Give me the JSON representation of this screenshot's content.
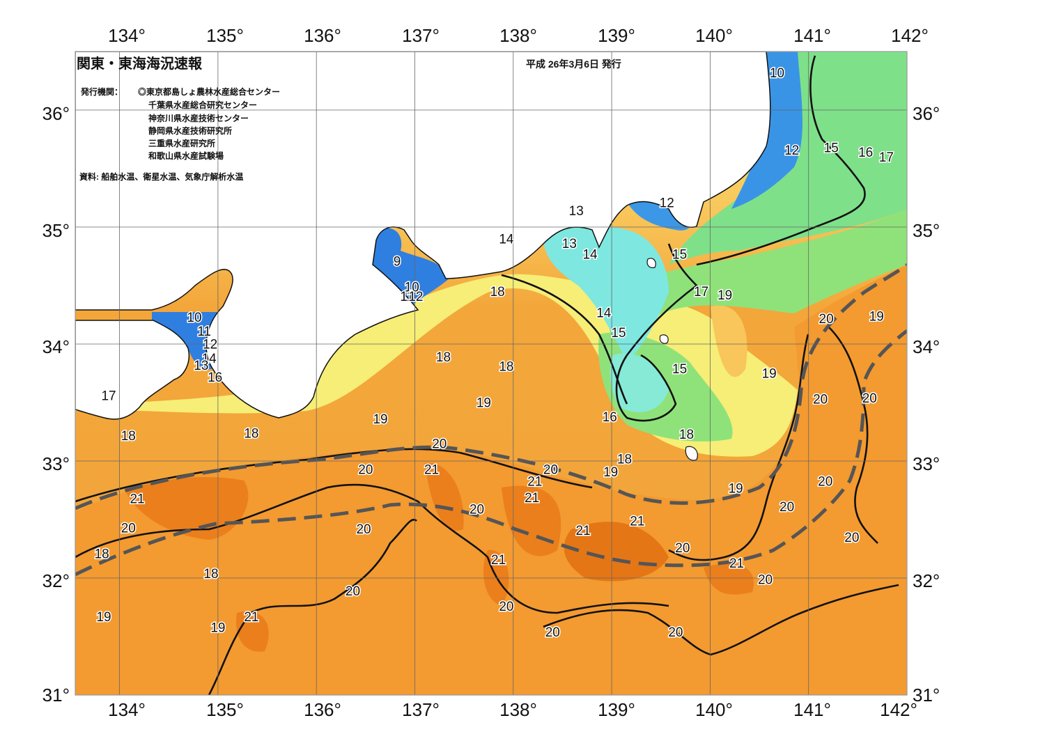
{
  "header": {
    "title": "関東・東海海況速報",
    "date": "平成 26年3月6日 発行"
  },
  "issuers": {
    "label": "発行機関：",
    "lines": [
      "◎東京都島しょ農林水産総合センター",
      "千葉県水産総合研究センター",
      "神奈川県水産技術センター",
      "静岡県水産技術研究所",
      "三重県水産研究所",
      "和歌山県水産試験場"
    ]
  },
  "source": "資料: 船舶水温、衛星水温、気象庁解析水温",
  "axes": {
    "lon_labels": [
      "134°",
      "135°",
      "136°",
      "137°",
      "138°",
      "139°",
      "140°",
      "141°",
      "142°"
    ],
    "lat_labels": [
      "36°",
      "35°",
      "34°",
      "33°",
      "32°",
      "31°"
    ]
  },
  "colors": {
    "land": "#ffffff",
    "water_9_12": "#3a8fe0",
    "water_13_14": "#7fe8e8",
    "water_15_16": "#86e07a",
    "water_17_18": "#f4f27a",
    "water_19": "#f8c65a",
    "water_20": "#f3a63a",
    "water_21": "#ea8a1e",
    "water_22": "#d9691a",
    "kuroshio_axis": "#555555"
  },
  "isotherm_labels": [
    {
      "text": "10",
      "lon": 140.68,
      "lat": 36.28
    },
    {
      "text": "12",
      "lon": 140.83,
      "lat": 35.62
    },
    {
      "text": "15",
      "lon": 141.23,
      "lat": 35.64
    },
    {
      "text": "16",
      "lon": 141.58,
      "lat": 35.6
    },
    {
      "text": "17",
      "lon": 141.79,
      "lat": 35.56
    },
    {
      "text": "12",
      "lon": 139.56,
      "lat": 35.17
    },
    {
      "text": "13",
      "lon": 138.64,
      "lat": 35.1
    },
    {
      "text": "14",
      "lon": 137.93,
      "lat": 34.86
    },
    {
      "text": "13",
      "lon": 138.57,
      "lat": 34.82
    },
    {
      "text": "14",
      "lon": 138.78,
      "lat": 34.73
    },
    {
      "text": "15",
      "lon": 139.69,
      "lat": 34.73
    },
    {
      "text": "9",
      "lon": 136.82,
      "lat": 34.67
    },
    {
      "text": "10",
      "lon": 136.97,
      "lat": 34.45
    },
    {
      "text": "11",
      "lon": 136.92,
      "lat": 34.37
    },
    {
      "text": "12",
      "lon": 137.01,
      "lat": 34.37
    },
    {
      "text": "18",
      "lon": 137.84,
      "lat": 34.41
    },
    {
      "text": "17",
      "lon": 139.91,
      "lat": 34.41
    },
    {
      "text": "19",
      "lon": 140.15,
      "lat": 34.38
    },
    {
      "text": "14",
      "lon": 138.92,
      "lat": 34.23
    },
    {
      "text": "15",
      "lon": 139.07,
      "lat": 34.06
    },
    {
      "text": "20",
      "lon": 141.18,
      "lat": 34.18
    },
    {
      "text": "19",
      "lon": 141.69,
      "lat": 34.2
    },
    {
      "text": "10",
      "lon": 134.76,
      "lat": 34.19
    },
    {
      "text": "11",
      "lon": 134.86,
      "lat": 34.07
    },
    {
      "text": "12",
      "lon": 134.92,
      "lat": 33.96
    },
    {
      "text": "14",
      "lon": 134.91,
      "lat": 33.84
    },
    {
      "text": "13",
      "lon": 134.83,
      "lat": 33.78
    },
    {
      "text": "16",
      "lon": 134.97,
      "lat": 33.68
    },
    {
      "text": "18",
      "lon": 137.29,
      "lat": 33.85
    },
    {
      "text": "18",
      "lon": 137.93,
      "lat": 33.77
    },
    {
      "text": "15",
      "lon": 139.69,
      "lat": 33.75
    },
    {
      "text": "19",
      "lon": 140.6,
      "lat": 33.71
    },
    {
      "text": "17",
      "lon": 133.89,
      "lat": 33.52
    },
    {
      "text": "19",
      "lon": 137.7,
      "lat": 33.46
    },
    {
      "text": "20",
      "lon": 141.12,
      "lat": 33.49
    },
    {
      "text": "20",
      "lon": 141.62,
      "lat": 33.5
    },
    {
      "text": "16",
      "lon": 138.98,
      "lat": 33.34
    },
    {
      "text": "19",
      "lon": 136.65,
      "lat": 33.32
    },
    {
      "text": "18",
      "lon": 134.09,
      "lat": 33.18
    },
    {
      "text": "18",
      "lon": 135.34,
      "lat": 33.2
    },
    {
      "text": "18",
      "lon": 139.76,
      "lat": 33.19
    },
    {
      "text": "20",
      "lon": 137.25,
      "lat": 33.11
    },
    {
      "text": "18",
      "lon": 139.13,
      "lat": 32.98
    },
    {
      "text": "20",
      "lon": 136.5,
      "lat": 32.89
    },
    {
      "text": "21",
      "lon": 137.17,
      "lat": 32.89
    },
    {
      "text": "20",
      "lon": 138.38,
      "lat": 32.89
    },
    {
      "text": "19",
      "lon": 138.99,
      "lat": 32.87
    },
    {
      "text": "21",
      "lon": 138.22,
      "lat": 32.79
    },
    {
      "text": "20",
      "lon": 141.17,
      "lat": 32.79
    },
    {
      "text": "19",
      "lon": 140.26,
      "lat": 32.73
    },
    {
      "text": "21",
      "lon": 134.18,
      "lat": 32.64
    },
    {
      "text": "21",
      "lon": 138.19,
      "lat": 32.65
    },
    {
      "text": "20",
      "lon": 140.78,
      "lat": 32.57
    },
    {
      "text": "20",
      "lon": 137.63,
      "lat": 32.55
    },
    {
      "text": "21",
      "lon": 139.26,
      "lat": 32.45
    },
    {
      "text": "20",
      "lon": 134.09,
      "lat": 32.39
    },
    {
      "text": "20",
      "lon": 136.48,
      "lat": 32.38
    },
    {
      "text": "21",
      "lon": 138.71,
      "lat": 32.37
    },
    {
      "text": "20",
      "lon": 141.44,
      "lat": 32.31
    },
    {
      "text": "18",
      "lon": 133.82,
      "lat": 32.17
    },
    {
      "text": "20",
      "lon": 139.72,
      "lat": 32.22
    },
    {
      "text": "21",
      "lon": 137.85,
      "lat": 32.12
    },
    {
      "text": "21",
      "lon": 140.27,
      "lat": 32.09
    },
    {
      "text": "18",
      "lon": 134.93,
      "lat": 32.0
    },
    {
      "text": "20",
      "lon": 136.37,
      "lat": 31.85
    },
    {
      "text": "20",
      "lon": 140.56,
      "lat": 31.95
    },
    {
      "text": "20",
      "lon": 137.93,
      "lat": 31.72
    },
    {
      "text": "19",
      "lon": 133.84,
      "lat": 31.63
    },
    {
      "text": "21",
      "lon": 135.34,
      "lat": 31.63
    },
    {
      "text": "19",
      "lon": 135.0,
      "lat": 31.54
    },
    {
      "text": "20",
      "lon": 138.4,
      "lat": 31.5
    },
    {
      "text": "20",
      "lon": 139.65,
      "lat": 31.5
    }
  ]
}
